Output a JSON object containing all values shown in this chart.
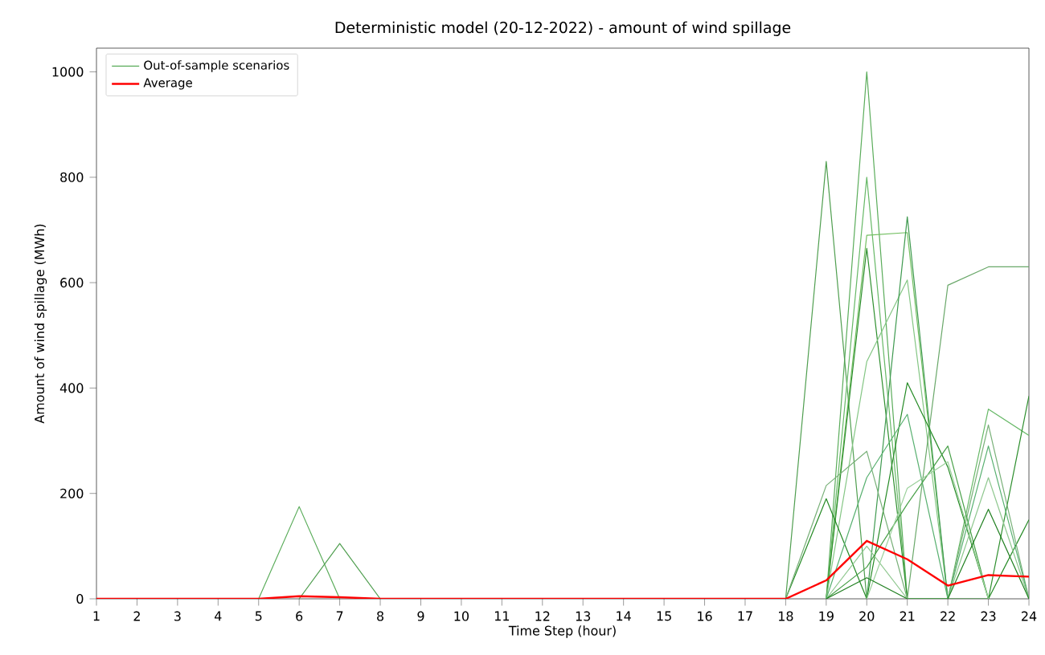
{
  "chart_data": {
    "type": "line",
    "title": "Deterministic model (20-12-2022) - amount of wind spillage",
    "xlabel": "Time Step (hour)",
    "ylabel": "Amount of wind spillage (MWh)",
    "x": [
      1,
      2,
      3,
      4,
      5,
      6,
      7,
      8,
      9,
      10,
      11,
      12,
      13,
      14,
      15,
      16,
      17,
      18,
      19,
      20,
      21,
      22,
      23,
      24
    ],
    "xlim": [
      1,
      24
    ],
    "xticks": [
      1,
      2,
      3,
      4,
      5,
      6,
      7,
      8,
      9,
      10,
      11,
      12,
      13,
      14,
      15,
      16,
      17,
      18,
      19,
      20,
      21,
      22,
      23,
      24
    ],
    "ylim": [
      0,
      1045
    ],
    "yticks": [
      0,
      200,
      400,
      600,
      800,
      1000
    ],
    "legend": "top left",
    "marker": "none",
    "line_style": "solid",
    "series": [
      {
        "name": "Out-of-sample scenarios",
        "color": "#5aac5a",
        "values": [
          null,
          null,
          null,
          null,
          0,
          175,
          0,
          null,
          null,
          null,
          null,
          null,
          null,
          null,
          null,
          null,
          null,
          null,
          0,
          1000,
          0,
          null,
          null,
          null
        ]
      },
      {
        "color": "#4f9e4f",
        "values": [
          null,
          null,
          null,
          null,
          null,
          0,
          105,
          0,
          null,
          null,
          null,
          null,
          null,
          null,
          null,
          null,
          null,
          0,
          830,
          0,
          null,
          null,
          null,
          null
        ]
      },
      {
        "color": "#66b866",
        "values": [
          null,
          null,
          null,
          null,
          null,
          null,
          null,
          null,
          null,
          null,
          null,
          null,
          null,
          null,
          null,
          null,
          null,
          null,
          0,
          800,
          0,
          0,
          360,
          310
        ]
      },
      {
        "color": "#72bf60",
        "values": [
          null,
          null,
          null,
          null,
          null,
          null,
          null,
          null,
          null,
          null,
          null,
          null,
          null,
          null,
          null,
          null,
          null,
          null,
          0,
          690,
          695,
          0,
          null,
          null
        ]
      },
      {
        "color": "#2e8f2e",
        "values": [
          null,
          null,
          null,
          null,
          null,
          null,
          null,
          null,
          null,
          null,
          null,
          null,
          null,
          null,
          null,
          null,
          null,
          null,
          0,
          665,
          0,
          0,
          0,
          385
        ]
      },
      {
        "color": "#84c684",
        "values": [
          null,
          null,
          null,
          null,
          null,
          null,
          null,
          null,
          null,
          null,
          null,
          null,
          null,
          null,
          null,
          null,
          null,
          null,
          0,
          450,
          605,
          0,
          null,
          null
        ]
      },
      {
        "color": "#3f9a50",
        "values": [
          null,
          null,
          null,
          null,
          null,
          null,
          null,
          null,
          null,
          null,
          null,
          null,
          null,
          null,
          null,
          null,
          null,
          null,
          null,
          0,
          725,
          0,
          null,
          null
        ]
      },
      {
        "color": "#6aa86a",
        "values": [
          null,
          null,
          null,
          null,
          null,
          null,
          null,
          null,
          null,
          null,
          null,
          null,
          null,
          null,
          null,
          null,
          null,
          null,
          null,
          null,
          0,
          595,
          630,
          630
        ]
      },
      {
        "color": "#248a24",
        "values": [
          null,
          null,
          null,
          null,
          null,
          null,
          null,
          null,
          null,
          null,
          null,
          null,
          null,
          null,
          null,
          null,
          null,
          0,
          190,
          0,
          410,
          250,
          0,
          150
        ]
      },
      {
        "color": "#78b078",
        "values": [
          null,
          null,
          null,
          null,
          null,
          null,
          null,
          null,
          null,
          null,
          null,
          null,
          null,
          null,
          null,
          null,
          null,
          0,
          215,
          280,
          0,
          0,
          330,
          0
        ]
      },
      {
        "color": "#58b070",
        "values": [
          null,
          null,
          null,
          null,
          null,
          null,
          null,
          null,
          null,
          null,
          null,
          null,
          null,
          null,
          null,
          null,
          null,
          null,
          0,
          230,
          350,
          0,
          290,
          0
        ]
      },
      {
        "color": "#90c890",
        "values": [
          null,
          null,
          null,
          null,
          null,
          null,
          null,
          null,
          null,
          null,
          null,
          null,
          null,
          null,
          null,
          null,
          null,
          null,
          0,
          100,
          0,
          0,
          230,
          0
        ]
      },
      {
        "color": "#48a048",
        "values": [
          null,
          null,
          null,
          null,
          null,
          null,
          null,
          null,
          null,
          null,
          null,
          null,
          null,
          null,
          null,
          null,
          null,
          null,
          0,
          60,
          180,
          290,
          0,
          null
        ]
      },
      {
        "color": "#9ad09a",
        "values": [
          null,
          null,
          null,
          null,
          null,
          null,
          null,
          null,
          null,
          null,
          null,
          null,
          null,
          null,
          null,
          null,
          null,
          null,
          null,
          0,
          210,
          260,
          0,
          null
        ]
      },
      {
        "color": "#1f7f1f",
        "values": [
          null,
          null,
          null,
          null,
          null,
          null,
          null,
          null,
          null,
          null,
          null,
          null,
          null,
          null,
          null,
          null,
          null,
          null,
          0,
          40,
          0,
          0,
          170,
          0
        ]
      },
      {
        "name": "Average",
        "color": "#ff0000",
        "values": [
          0,
          0,
          0,
          0,
          0,
          5,
          3,
          0,
          0,
          0,
          0,
          0,
          0,
          0,
          0,
          0,
          0,
          0,
          35,
          110,
          75,
          25,
          45,
          42
        ]
      }
    ]
  }
}
